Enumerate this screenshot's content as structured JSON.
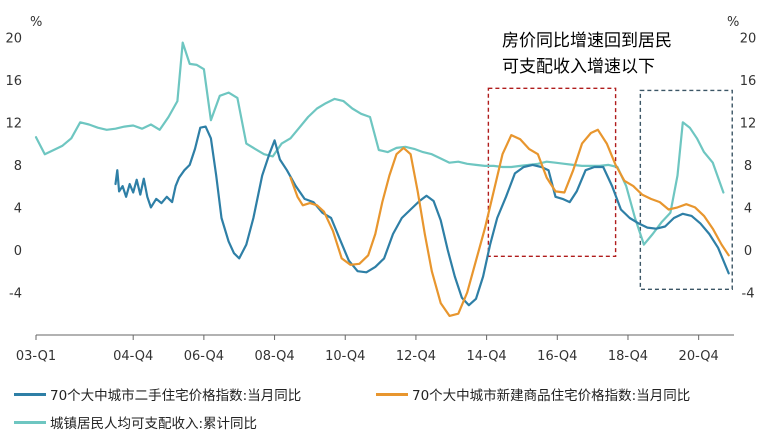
{
  "chart_data": {
    "type": "line",
    "unit_left": "%",
    "unit_right": "%",
    "annotation_lines": [
      "房价同比增速回到居民",
      "可支配收入增速以下"
    ],
    "ylim": [
      -8,
      22
    ],
    "yticks": [
      -4,
      0,
      4,
      8,
      12,
      16,
      20
    ],
    "ytick_labels": [
      "-4",
      "0",
      "4",
      "8",
      "12",
      "16",
      "20"
    ],
    "xlim": [
      2003.0,
      2022.75
    ],
    "xtick_positions": [
      2003.0,
      2005.75,
      2007.75,
      2009.75,
      2011.75,
      2013.75,
      2015.75,
      2017.75,
      2019.75,
      2021.75
    ],
    "xtick_labels": [
      "03-Q1",
      "04-Q4",
      "06-Q4",
      "08-Q4",
      "10-Q4",
      "12-Q4",
      "14-Q4",
      "16-Q4",
      "18-Q4",
      "20-Q4"
    ],
    "grid": false,
    "legend_position": "bottom",
    "series": [
      {
        "name": "70个大中城市二手住宅价格指数:当月同比",
        "color": "#2e7fa6",
        "points": [
          [
            2005.25,
            6.2
          ],
          [
            2005.3,
            7.5
          ],
          [
            2005.35,
            5.5
          ],
          [
            2005.45,
            6.0
          ],
          [
            2005.55,
            5.0
          ],
          [
            2005.65,
            6.2
          ],
          [
            2005.75,
            5.4
          ],
          [
            2005.85,
            6.6
          ],
          [
            2005.95,
            5.2
          ],
          [
            2006.05,
            6.7
          ],
          [
            2006.15,
            5.0
          ],
          [
            2006.25,
            4.0
          ],
          [
            2006.4,
            4.8
          ],
          [
            2006.55,
            4.4
          ],
          [
            2006.7,
            5.0
          ],
          [
            2006.85,
            4.5
          ],
          [
            2006.95,
            6.0
          ],
          [
            2007.05,
            6.8
          ],
          [
            2007.2,
            7.5
          ],
          [
            2007.35,
            8.0
          ],
          [
            2007.5,
            9.5
          ],
          [
            2007.65,
            11.5
          ],
          [
            2007.8,
            11.6
          ],
          [
            2007.95,
            10.5
          ],
          [
            2008.1,
            7.0
          ],
          [
            2008.25,
            3.0
          ],
          [
            2008.45,
            0.8
          ],
          [
            2008.6,
            -0.3
          ],
          [
            2008.75,
            -0.8
          ],
          [
            2008.95,
            0.5
          ],
          [
            2009.15,
            3.0
          ],
          [
            2009.4,
            7.0
          ],
          [
            2009.6,
            9.0
          ],
          [
            2009.75,
            10.3
          ],
          [
            2009.9,
            8.5
          ],
          [
            2010.1,
            7.5
          ],
          [
            2010.35,
            6.0
          ],
          [
            2010.6,
            4.8
          ],
          [
            2010.85,
            4.5
          ],
          [
            2011.1,
            3.5
          ],
          [
            2011.35,
            3.0
          ],
          [
            2011.6,
            1.0
          ],
          [
            2011.85,
            -1.0
          ],
          [
            2012.1,
            -2.0
          ],
          [
            2012.35,
            -2.1
          ],
          [
            2012.6,
            -1.6
          ],
          [
            2012.85,
            -0.8
          ],
          [
            2013.1,
            1.5
          ],
          [
            2013.35,
            3.0
          ],
          [
            2013.6,
            3.8
          ],
          [
            2013.85,
            4.6
          ],
          [
            2014.05,
            5.1
          ],
          [
            2014.25,
            4.6
          ],
          [
            2014.45,
            2.8
          ],
          [
            2014.65,
            0.0
          ],
          [
            2014.85,
            -2.5
          ],
          [
            2015.05,
            -4.5
          ],
          [
            2015.25,
            -5.2
          ],
          [
            2015.45,
            -4.6
          ],
          [
            2015.65,
            -2.5
          ],
          [
            2015.85,
            0.5
          ],
          [
            2016.05,
            3.0
          ],
          [
            2016.3,
            5.0
          ],
          [
            2016.55,
            7.2
          ],
          [
            2016.8,
            7.8
          ],
          [
            2017.05,
            8.0
          ],
          [
            2017.3,
            7.8
          ],
          [
            2017.5,
            7.5
          ],
          [
            2017.7,
            5.0
          ],
          [
            2017.9,
            4.8
          ],
          [
            2018.1,
            4.5
          ],
          [
            2018.3,
            5.5
          ],
          [
            2018.55,
            7.5
          ],
          [
            2018.8,
            7.8
          ],
          [
            2019.05,
            7.8
          ],
          [
            2019.3,
            6.0
          ],
          [
            2019.55,
            3.8
          ],
          [
            2019.8,
            3.0
          ],
          [
            2020.05,
            2.5
          ],
          [
            2020.3,
            2.1
          ],
          [
            2020.55,
            2.0
          ],
          [
            2020.8,
            2.2
          ],
          [
            2021.05,
            3.0
          ],
          [
            2021.3,
            3.4
          ],
          [
            2021.55,
            3.2
          ],
          [
            2021.8,
            2.5
          ],
          [
            2022.05,
            1.5
          ],
          [
            2022.3,
            0.2
          ],
          [
            2022.6,
            -2.2
          ]
        ]
      },
      {
        "name": "70个大中城市新建商品住宅价格指数:当月同比",
        "color": "#e8962e",
        "points": [
          [
            2010.2,
            6.8
          ],
          [
            2010.4,
            5.0
          ],
          [
            2010.55,
            4.2
          ],
          [
            2010.75,
            4.4
          ],
          [
            2010.95,
            4.2
          ],
          [
            2011.15,
            3.6
          ],
          [
            2011.4,
            1.8
          ],
          [
            2011.65,
            -0.8
          ],
          [
            2011.9,
            -1.4
          ],
          [
            2012.15,
            -1.3
          ],
          [
            2012.4,
            -0.5
          ],
          [
            2012.6,
            1.5
          ],
          [
            2012.8,
            4.5
          ],
          [
            2013.0,
            7.0
          ],
          [
            2013.2,
            9.0
          ],
          [
            2013.4,
            9.6
          ],
          [
            2013.6,
            9.0
          ],
          [
            2013.8,
            5.5
          ],
          [
            2014.0,
            1.5
          ],
          [
            2014.2,
            -2.0
          ],
          [
            2014.45,
            -5.0
          ],
          [
            2014.7,
            -6.2
          ],
          [
            2014.95,
            -6.0
          ],
          [
            2015.2,
            -4.0
          ],
          [
            2015.45,
            -1.0
          ],
          [
            2015.7,
            2.0
          ],
          [
            2015.95,
            5.5
          ],
          [
            2016.2,
            9.0
          ],
          [
            2016.45,
            10.8
          ],
          [
            2016.7,
            10.4
          ],
          [
            2016.95,
            9.5
          ],
          [
            2017.2,
            9.0
          ],
          [
            2017.45,
            6.8
          ],
          [
            2017.7,
            5.5
          ],
          [
            2017.95,
            5.4
          ],
          [
            2018.2,
            7.5
          ],
          [
            2018.45,
            10.0
          ],
          [
            2018.7,
            11.0
          ],
          [
            2018.9,
            11.3
          ],
          [
            2019.15,
            10.0
          ],
          [
            2019.4,
            8.0
          ],
          [
            2019.65,
            6.5
          ],
          [
            2019.9,
            6.0
          ],
          [
            2020.15,
            5.2
          ],
          [
            2020.4,
            4.8
          ],
          [
            2020.65,
            4.5
          ],
          [
            2020.9,
            3.8
          ],
          [
            2021.15,
            4.0
          ],
          [
            2021.4,
            4.3
          ],
          [
            2021.65,
            4.0
          ],
          [
            2021.9,
            3.2
          ],
          [
            2022.15,
            2.0
          ],
          [
            2022.4,
            0.5
          ],
          [
            2022.6,
            -0.5
          ]
        ]
      },
      {
        "name": "城镇居民人均可支配收入:累计同比",
        "color": "#6ec6c1",
        "points": [
          [
            2003.0,
            10.6
          ],
          [
            2003.25,
            9.0
          ],
          [
            2003.5,
            9.4
          ],
          [
            2003.75,
            9.8
          ],
          [
            2004.0,
            10.5
          ],
          [
            2004.25,
            12.0
          ],
          [
            2004.5,
            11.8
          ],
          [
            2004.75,
            11.5
          ],
          [
            2005.0,
            11.3
          ],
          [
            2005.25,
            11.4
          ],
          [
            2005.5,
            11.6
          ],
          [
            2005.75,
            11.7
          ],
          [
            2006.0,
            11.4
          ],
          [
            2006.25,
            11.8
          ],
          [
            2006.5,
            11.3
          ],
          [
            2006.75,
            12.5
          ],
          [
            2007.0,
            14.0
          ],
          [
            2007.15,
            19.5
          ],
          [
            2007.35,
            17.5
          ],
          [
            2007.55,
            17.4
          ],
          [
            2007.75,
            17.0
          ],
          [
            2007.95,
            12.2
          ],
          [
            2008.2,
            14.5
          ],
          [
            2008.45,
            14.8
          ],
          [
            2008.7,
            14.3
          ],
          [
            2008.95,
            10.0
          ],
          [
            2009.2,
            9.5
          ],
          [
            2009.45,
            9.0
          ],
          [
            2009.7,
            8.8
          ],
          [
            2009.95,
            10.0
          ],
          [
            2010.2,
            10.5
          ],
          [
            2010.45,
            11.5
          ],
          [
            2010.7,
            12.5
          ],
          [
            2010.95,
            13.3
          ],
          [
            2011.2,
            13.8
          ],
          [
            2011.45,
            14.2
          ],
          [
            2011.7,
            14.0
          ],
          [
            2011.95,
            13.3
          ],
          [
            2012.2,
            12.8
          ],
          [
            2012.45,
            12.5
          ],
          [
            2012.7,
            9.4
          ],
          [
            2012.95,
            9.2
          ],
          [
            2013.2,
            9.6
          ],
          [
            2013.45,
            9.7
          ],
          [
            2013.7,
            9.5
          ],
          [
            2013.95,
            9.2
          ],
          [
            2014.2,
            9.0
          ],
          [
            2014.45,
            8.6
          ],
          [
            2014.7,
            8.2
          ],
          [
            2014.95,
            8.3
          ],
          [
            2015.2,
            8.1
          ],
          [
            2015.45,
            8.0
          ],
          [
            2015.7,
            7.9
          ],
          [
            2015.95,
            7.9
          ],
          [
            2016.2,
            7.8
          ],
          [
            2016.45,
            7.8
          ],
          [
            2016.7,
            7.9
          ],
          [
            2016.95,
            8.0
          ],
          [
            2017.2,
            8.1
          ],
          [
            2017.45,
            8.3
          ],
          [
            2017.7,
            8.2
          ],
          [
            2017.95,
            8.1
          ],
          [
            2018.2,
            8.0
          ],
          [
            2018.45,
            7.9
          ],
          [
            2018.7,
            7.9
          ],
          [
            2018.95,
            7.9
          ],
          [
            2019.2,
            8.0
          ],
          [
            2019.45,
            7.8
          ],
          [
            2019.7,
            6.0
          ],
          [
            2019.95,
            3.0
          ],
          [
            2020.2,
            0.5
          ],
          [
            2020.45,
            1.5
          ],
          [
            2020.7,
            2.6
          ],
          [
            2020.95,
            3.5
          ],
          [
            2021.15,
            7.0
          ],
          [
            2021.3,
            12.0
          ],
          [
            2021.5,
            11.5
          ],
          [
            2021.7,
            10.5
          ],
          [
            2021.9,
            9.2
          ],
          [
            2022.15,
            8.2
          ],
          [
            2022.45,
            5.4
          ]
        ]
      }
    ],
    "highlight_boxes": [
      {
        "x0": 2015.8,
        "x1": 2019.4,
        "y0": -0.6,
        "y1": 15.2,
        "color": "#b01c1c"
      },
      {
        "x0": 2020.1,
        "x1": 2022.7,
        "y0": -3.7,
        "y1": 15.0,
        "color": "#3b5565"
      }
    ]
  }
}
